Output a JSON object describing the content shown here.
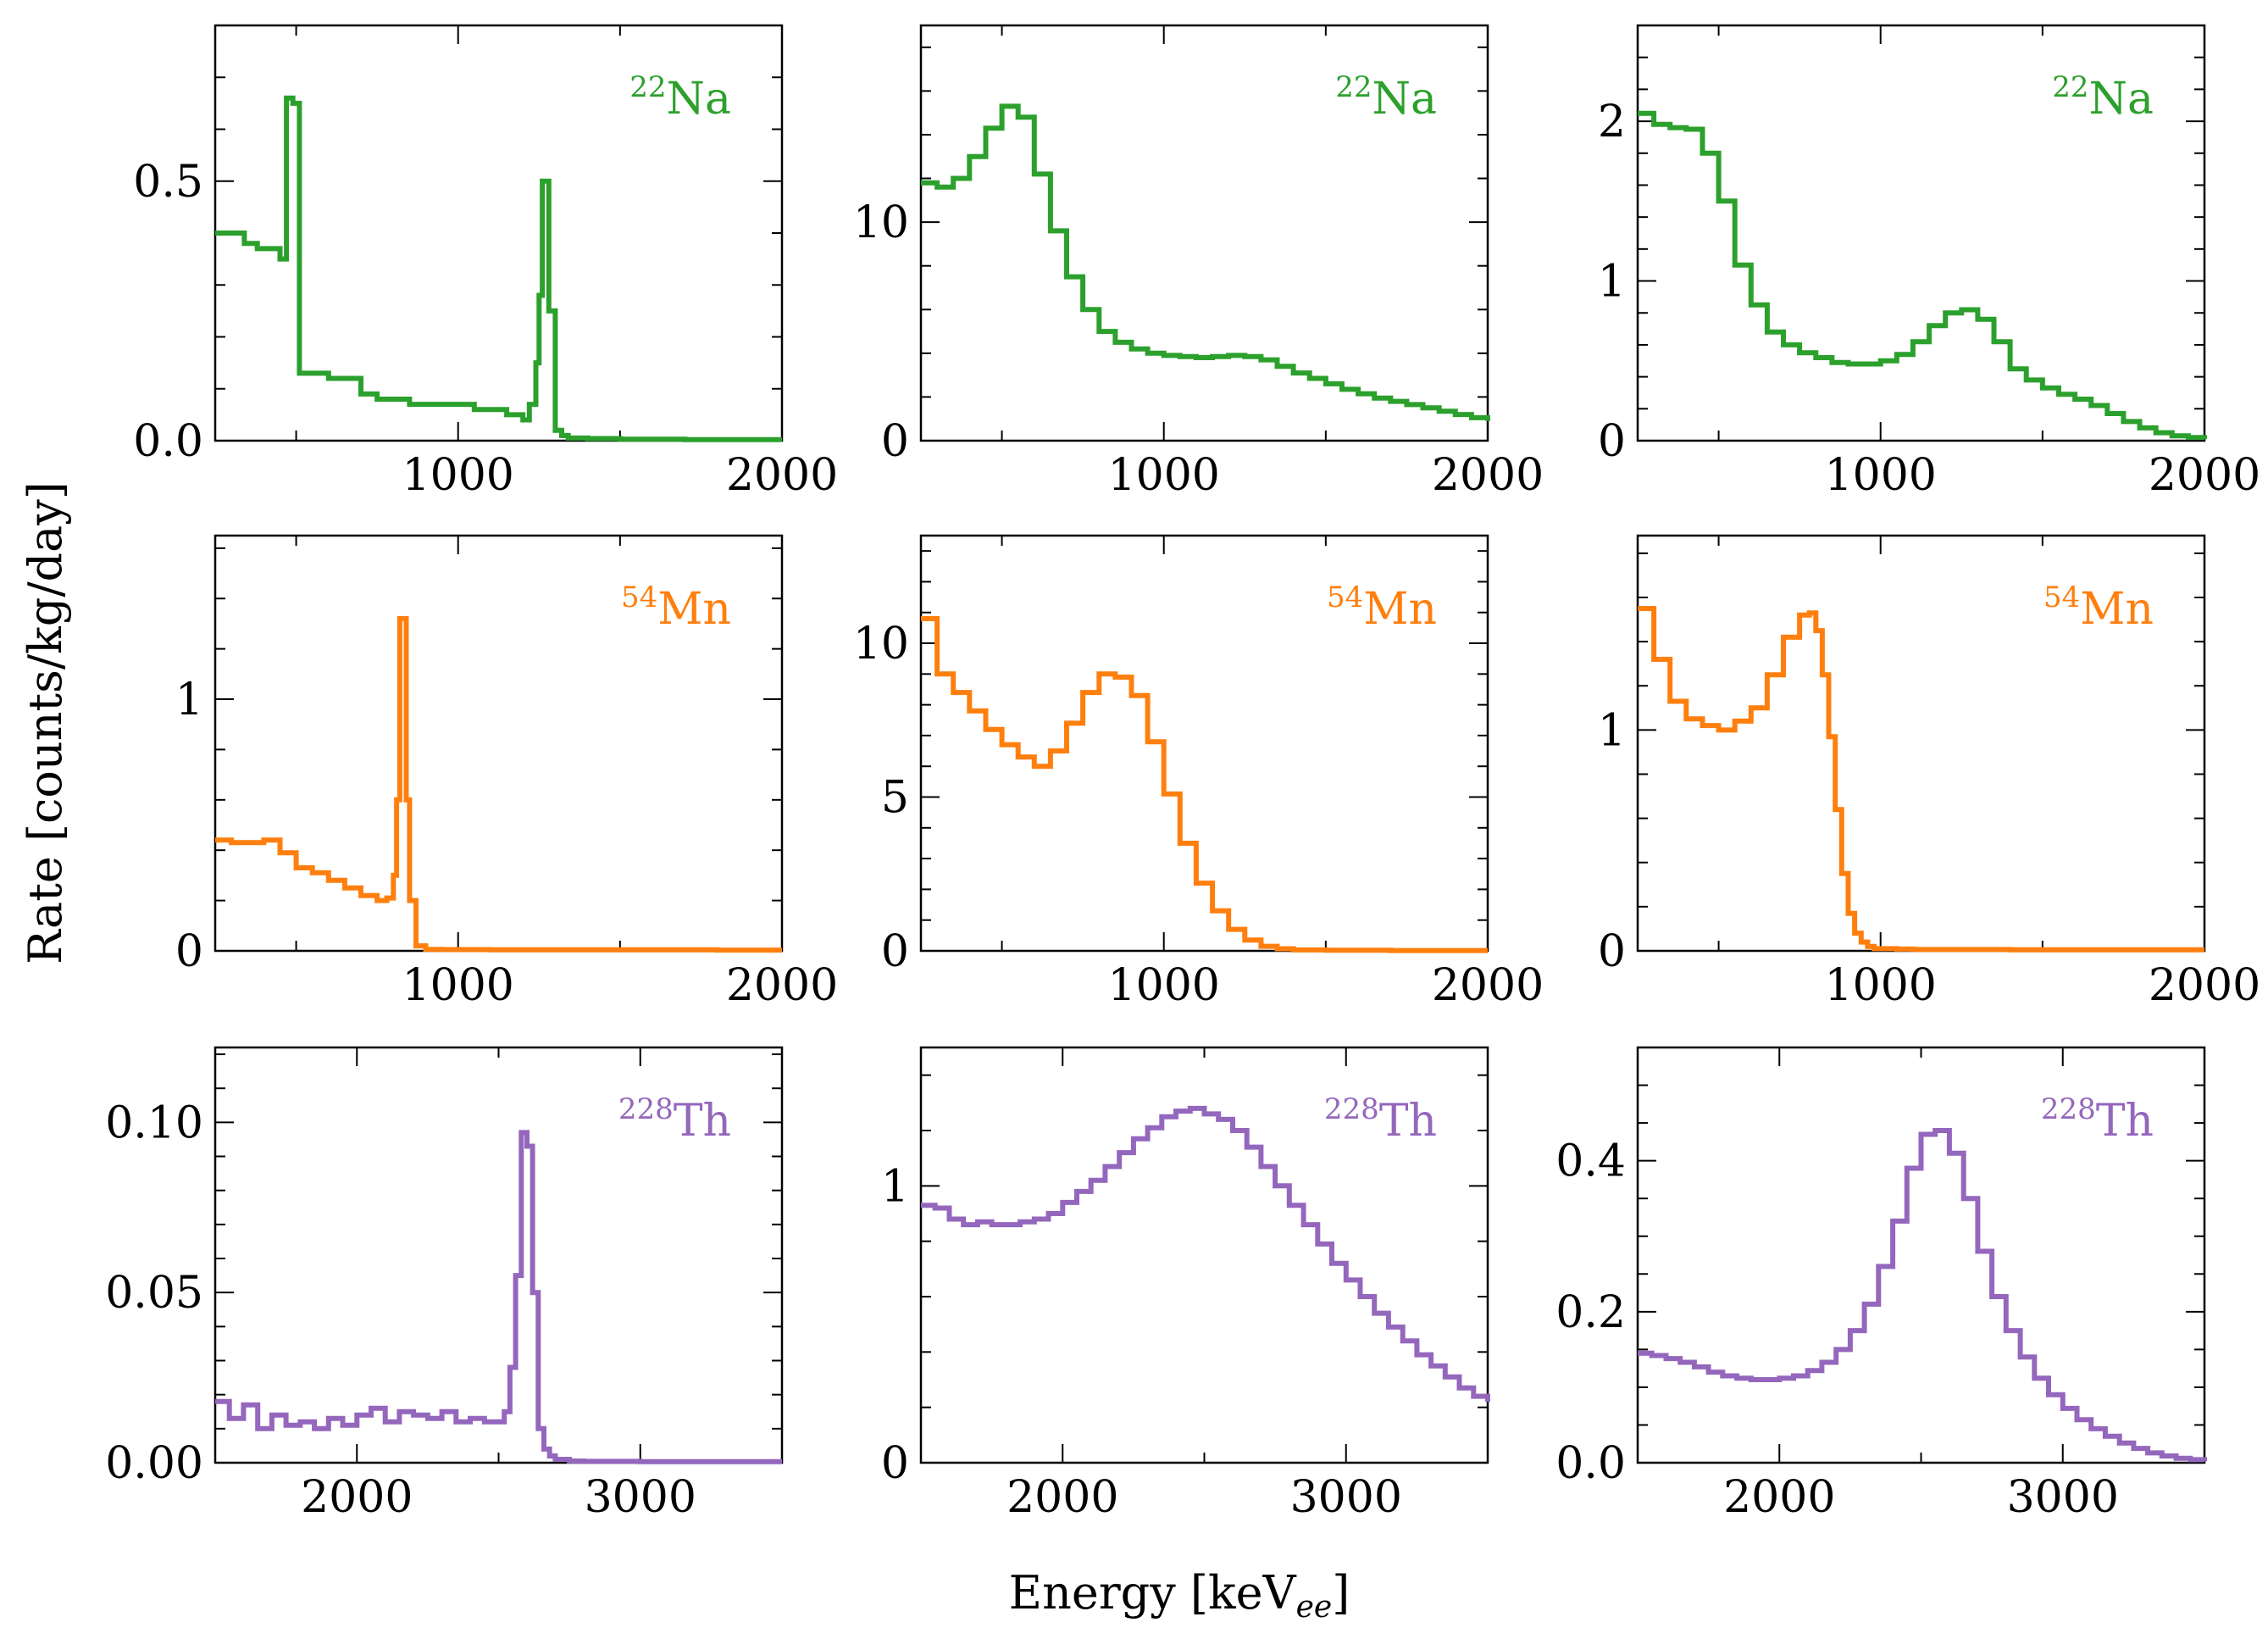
{
  "figure": {
    "ylabel": "Rate [counts/kg/day]",
    "xlabel_main": "Energy [keV",
    "xlabel_sub": "ee",
    "xlabel_end": "]"
  },
  "chart_data": [
    {
      "type": "line",
      "step": true,
      "isotope_mass": "22",
      "isotope_symbol": "Na",
      "color": "#2ca02c",
      "xlim": [
        250,
        2000
      ],
      "ylim": [
        0,
        0.8
      ],
      "xticks": [
        1000,
        2000
      ],
      "yticks": [
        0.0,
        0.5
      ],
      "ytick_labels": [
        "0.0",
        "0.5"
      ],
      "x": [
        250,
        300,
        340,
        380,
        420,
        450,
        470,
        490,
        510,
        530,
        560,
        600,
        650,
        700,
        750,
        800,
        850,
        900,
        950,
        1000,
        1050,
        1100,
        1150,
        1200,
        1220,
        1240,
        1250,
        1260,
        1270,
        1280,
        1300,
        1320,
        1340,
        1400,
        1500,
        1700,
        2000
      ],
      "y": [
        0.4,
        0.4,
        0.38,
        0.37,
        0.37,
        0.35,
        0.66,
        0.65,
        0.13,
        0.13,
        0.13,
        0.12,
        0.12,
        0.09,
        0.08,
        0.08,
        0.07,
        0.07,
        0.07,
        0.07,
        0.06,
        0.06,
        0.05,
        0.04,
        0.07,
        0.15,
        0.28,
        0.5,
        0.5,
        0.25,
        0.02,
        0.01,
        0.005,
        0.004,
        0.003,
        0.002,
        0.002
      ]
    },
    {
      "type": "line",
      "step": true,
      "isotope_mass": "22",
      "isotope_symbol": "Na",
      "color": "#2ca02c",
      "xlim": [
        250,
        2000
      ],
      "ylim": [
        0,
        19
      ],
      "xticks": [
        1000,
        2000
      ],
      "yticks": [
        0,
        10
      ],
      "ytick_labels": [
        "0",
        "10"
      ],
      "x": [
        250,
        300,
        350,
        400,
        450,
        500,
        550,
        600,
        650,
        700,
        750,
        800,
        850,
        900,
        950,
        1000,
        1050,
        1100,
        1150,
        1200,
        1250,
        1300,
        1350,
        1400,
        1450,
        1500,
        1550,
        1600,
        1650,
        1700,
        1750,
        1800,
        1850,
        1900,
        1950,
        2000
      ],
      "y": [
        11.8,
        11.6,
        12.0,
        13.0,
        14.3,
        15.3,
        14.8,
        12.2,
        9.6,
        7.5,
        6.0,
        5.0,
        4.5,
        4.2,
        4.0,
        3.9,
        3.85,
        3.8,
        3.85,
        3.9,
        3.85,
        3.7,
        3.4,
        3.1,
        2.85,
        2.6,
        2.35,
        2.15,
        1.95,
        1.8,
        1.65,
        1.5,
        1.35,
        1.2,
        1.05,
        0.9
      ]
    },
    {
      "type": "line",
      "step": true,
      "isotope_mass": "22",
      "isotope_symbol": "Na",
      "color": "#2ca02c",
      "xlim": [
        250,
        2000
      ],
      "ylim": [
        0,
        2.6
      ],
      "xticks": [
        1000,
        2000
      ],
      "yticks": [
        0,
        1,
        2
      ],
      "ytick_labels": [
        "0",
        "1",
        "2"
      ],
      "x": [
        250,
        300,
        350,
        400,
        450,
        500,
        550,
        600,
        650,
        700,
        750,
        800,
        850,
        900,
        950,
        1000,
        1050,
        1100,
        1150,
        1200,
        1250,
        1300,
        1350,
        1400,
        1450,
        1500,
        1550,
        1600,
        1650,
        1700,
        1750,
        1800,
        1850,
        1900,
        1950,
        2000
      ],
      "y": [
        2.05,
        1.98,
        1.96,
        1.95,
        1.8,
        1.5,
        1.1,
        0.85,
        0.68,
        0.6,
        0.55,
        0.52,
        0.49,
        0.48,
        0.48,
        0.5,
        0.54,
        0.62,
        0.72,
        0.8,
        0.82,
        0.76,
        0.62,
        0.45,
        0.38,
        0.33,
        0.29,
        0.26,
        0.22,
        0.17,
        0.12,
        0.08,
        0.05,
        0.03,
        0.02,
        0.01
      ]
    },
    {
      "type": "line",
      "step": true,
      "isotope_mass": "54",
      "isotope_symbol": "Mn",
      "color": "#ff7f0e",
      "xlim": [
        250,
        2000
      ],
      "ylim": [
        0,
        1.65
      ],
      "xticks": [
        1000,
        2000
      ],
      "yticks": [
        0,
        1
      ],
      "ytick_labels": [
        "0",
        "1"
      ],
      "x": [
        250,
        300,
        350,
        400,
        450,
        500,
        550,
        600,
        650,
        700,
        750,
        780,
        800,
        810,
        820,
        830,
        840,
        850,
        870,
        900,
        950,
        1000,
        1100,
        1300,
        1500,
        1800,
        2000
      ],
      "y": [
        0.44,
        0.43,
        0.43,
        0.44,
        0.39,
        0.33,
        0.31,
        0.28,
        0.25,
        0.22,
        0.2,
        0.21,
        0.3,
        0.6,
        1.32,
        1.32,
        0.6,
        0.2,
        0.02,
        0.006,
        0.005,
        0.005,
        0.004,
        0.004,
        0.004,
        0.003,
        0.003
      ]
    },
    {
      "type": "line",
      "step": true,
      "isotope_mass": "54",
      "isotope_symbol": "Mn",
      "color": "#ff7f0e",
      "xlim": [
        250,
        2000
      ],
      "ylim": [
        0,
        13.5
      ],
      "xticks": [
        1000,
        2000
      ],
      "yticks": [
        0,
        5,
        10
      ],
      "ytick_labels": [
        "0",
        "5",
        "10"
      ],
      "x": [
        250,
        300,
        350,
        400,
        450,
        500,
        550,
        600,
        650,
        700,
        750,
        800,
        850,
        900,
        950,
        1000,
        1050,
        1100,
        1150,
        1200,
        1250,
        1300,
        1350,
        1400,
        1500,
        1700,
        2000
      ],
      "y": [
        10.8,
        9.0,
        8.4,
        7.8,
        7.2,
        6.7,
        6.3,
        6.0,
        6.5,
        7.4,
        8.4,
        9.0,
        8.9,
        8.3,
        6.8,
        5.1,
        3.5,
        2.2,
        1.3,
        0.7,
        0.35,
        0.15,
        0.07,
        0.03,
        0.02,
        0.01,
        0.01
      ]
    },
    {
      "type": "line",
      "step": true,
      "isotope_mass": "54",
      "isotope_symbol": "Mn",
      "color": "#ff7f0e",
      "xlim": [
        250,
        2000
      ],
      "ylim": [
        0,
        1.88
      ],
      "xticks": [
        1000,
        2000
      ],
      "yticks": [
        0,
        1
      ],
      "ytick_labels": [
        "0",
        "1"
      ],
      "x": [
        250,
        300,
        350,
        400,
        450,
        500,
        550,
        600,
        650,
        700,
        750,
        780,
        800,
        820,
        840,
        860,
        880,
        900,
        920,
        940,
        960,
        980,
        1000,
        1050,
        1100,
        1200,
        1400,
        1700,
        2000
      ],
      "y": [
        1.55,
        1.32,
        1.13,
        1.05,
        1.02,
        1.0,
        1.04,
        1.1,
        1.25,
        1.42,
        1.52,
        1.53,
        1.45,
        1.25,
        0.97,
        0.64,
        0.35,
        0.17,
        0.08,
        0.04,
        0.02,
        0.01,
        0.01,
        0.008,
        0.006,
        0.006,
        0.005,
        0.005,
        0.005
      ]
    },
    {
      "type": "line",
      "step": true,
      "isotope_mass": "228",
      "isotope_symbol": "Th",
      "color": "#9467bd",
      "xlim": [
        1500,
        3500
      ],
      "ylim": [
        0,
        0.122
      ],
      "xticks": [
        2000,
        3000
      ],
      "yticks": [
        0.0,
        0.05,
        0.1
      ],
      "ytick_labels": [
        "0.00",
        "0.05",
        "0.10"
      ],
      "x": [
        1500,
        1550,
        1600,
        1650,
        1700,
        1750,
        1800,
        1850,
        1900,
        1950,
        2000,
        2050,
        2100,
        2150,
        2200,
        2250,
        2300,
        2350,
        2400,
        2450,
        2500,
        2520,
        2540,
        2560,
        2580,
        2600,
        2620,
        2640,
        2660,
        2680,
        2700,
        2750,
        2800,
        3000,
        3500
      ],
      "y": [
        0.018,
        0.013,
        0.017,
        0.01,
        0.014,
        0.011,
        0.012,
        0.01,
        0.013,
        0.011,
        0.014,
        0.016,
        0.012,
        0.015,
        0.014,
        0.013,
        0.015,
        0.012,
        0.013,
        0.012,
        0.012,
        0.015,
        0.028,
        0.055,
        0.097,
        0.093,
        0.05,
        0.01,
        0.004,
        0.002,
        0.001,
        0.0005,
        0.0004,
        0.0003,
        0.0003
      ]
    },
    {
      "type": "line",
      "step": true,
      "isotope_mass": "228",
      "isotope_symbol": "Th",
      "color": "#9467bd",
      "xlim": [
        1500,
        3500
      ],
      "ylim": [
        0,
        1.5
      ],
      "xticks": [
        2000,
        3000
      ],
      "yticks": [
        0,
        1
      ],
      "ytick_labels": [
        "0",
        "1"
      ],
      "x": [
        1500,
        1550,
        1600,
        1650,
        1700,
        1750,
        1800,
        1850,
        1900,
        1950,
        2000,
        2050,
        2100,
        2150,
        2200,
        2250,
        2300,
        2350,
        2400,
        2450,
        2500,
        2550,
        2600,
        2650,
        2700,
        2750,
        2800,
        2850,
        2900,
        2950,
        3000,
        3050,
        3100,
        3150,
        3200,
        3250,
        3300,
        3350,
        3400,
        3450,
        3500
      ],
      "y": [
        0.93,
        0.92,
        0.88,
        0.86,
        0.87,
        0.86,
        0.86,
        0.87,
        0.88,
        0.9,
        0.94,
        0.98,
        1.02,
        1.07,
        1.12,
        1.17,
        1.21,
        1.25,
        1.27,
        1.28,
        1.26,
        1.24,
        1.2,
        1.14,
        1.07,
        1.0,
        0.93,
        0.86,
        0.79,
        0.72,
        0.66,
        0.6,
        0.54,
        0.49,
        0.44,
        0.39,
        0.35,
        0.31,
        0.27,
        0.24,
        0.22
      ]
    },
    {
      "type": "line",
      "step": true,
      "isotope_mass": "228",
      "isotope_symbol": "Th",
      "color": "#9467bd",
      "xlim": [
        1500,
        3500
      ],
      "ylim": [
        0,
        0.55
      ],
      "xticks": [
        2000,
        3000
      ],
      "yticks": [
        0.0,
        0.2,
        0.4
      ],
      "ytick_labels": [
        "0.0",
        "0.2",
        "0.4"
      ],
      "x": [
        1500,
        1550,
        1600,
        1650,
        1700,
        1750,
        1800,
        1850,
        1900,
        1950,
        2000,
        2050,
        2100,
        2150,
        2200,
        2250,
        2300,
        2350,
        2400,
        2450,
        2500,
        2550,
        2600,
        2650,
        2700,
        2750,
        2800,
        2850,
        2900,
        2950,
        3000,
        3050,
        3100,
        3150,
        3200,
        3250,
        3300,
        3350,
        3400,
        3450,
        3500
      ],
      "y": [
        0.145,
        0.142,
        0.138,
        0.133,
        0.127,
        0.12,
        0.115,
        0.112,
        0.11,
        0.11,
        0.112,
        0.115,
        0.122,
        0.133,
        0.15,
        0.175,
        0.21,
        0.26,
        0.32,
        0.39,
        0.435,
        0.44,
        0.41,
        0.35,
        0.28,
        0.22,
        0.175,
        0.14,
        0.112,
        0.09,
        0.072,
        0.057,
        0.045,
        0.035,
        0.026,
        0.019,
        0.013,
        0.009,
        0.006,
        0.004,
        0.002
      ]
    }
  ]
}
